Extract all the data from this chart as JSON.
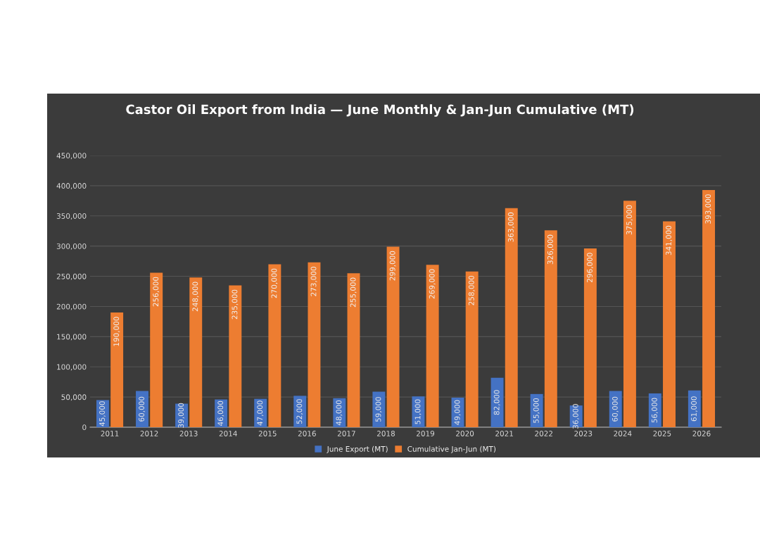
{
  "chart_data": {
    "type": "bar",
    "title": "Castor Oil Export from India — June Monthly & Jan-Jun Cumulative (MT)",
    "categories": [
      "2011",
      "2012",
      "2013",
      "2014",
      "2015",
      "2016",
      "2017",
      "2018",
      "2019",
      "2020",
      "2021",
      "2022",
      "2023",
      "2024",
      "2025",
      "2026"
    ],
    "series": [
      {
        "name": "June Export (MT)",
        "color": "#4472c4",
        "values": [
          45000,
          60000,
          39000,
          46000,
          47000,
          52000,
          48000,
          59000,
          51000,
          49000,
          82000,
          55000,
          36000,
          60000,
          56000,
          61000
        ],
        "value_labels": [
          "45,000",
          "60,000",
          "39,000",
          "46,000",
          "47,000",
          "52,000",
          "48,000",
          "59,000",
          "51,000",
          "49,000",
          "82,000",
          "55,000",
          "36,000",
          "60,000",
          "56,000",
          "61,000"
        ]
      },
      {
        "name": "Cumulative Jan-Jun (MT)",
        "color": "#ed7d31",
        "values": [
          190000,
          256000,
          248000,
          235000,
          270000,
          273000,
          255000,
          299000,
          269000,
          258000,
          363000,
          326000,
          296000,
          375000,
          341000,
          393000
        ],
        "value_labels": [
          "190,000",
          "256,000",
          "248,000",
          "235,000",
          "270,000",
          "273,000",
          "255,000",
          "299,000",
          "269,000",
          "258,000",
          "363,000",
          "326,000",
          "296,000",
          "375,000",
          "341,000",
          "393,000"
        ]
      }
    ],
    "ylim": [
      0,
      450000
    ],
    "yticks": [
      0,
      {
        "value": 50000,
        "label": "50,000"
      },
      {
        "value": 100000,
        "label": "100,000"
      },
      {
        "value": 150000,
        "label": "150,000"
      },
      {
        "value": 200000,
        "label": "200,000"
      },
      {
        "value": 250000,
        "label": "250,000"
      },
      {
        "value": 300000,
        "label": "300,000"
      },
      {
        "value": 350000,
        "label": "350,000"
      },
      {
        "value": 400000,
        "label": "400,000"
      },
      {
        "value": 450000,
        "label": "450,000"
      }
    ],
    "grid": "y",
    "legend": "bottom"
  }
}
